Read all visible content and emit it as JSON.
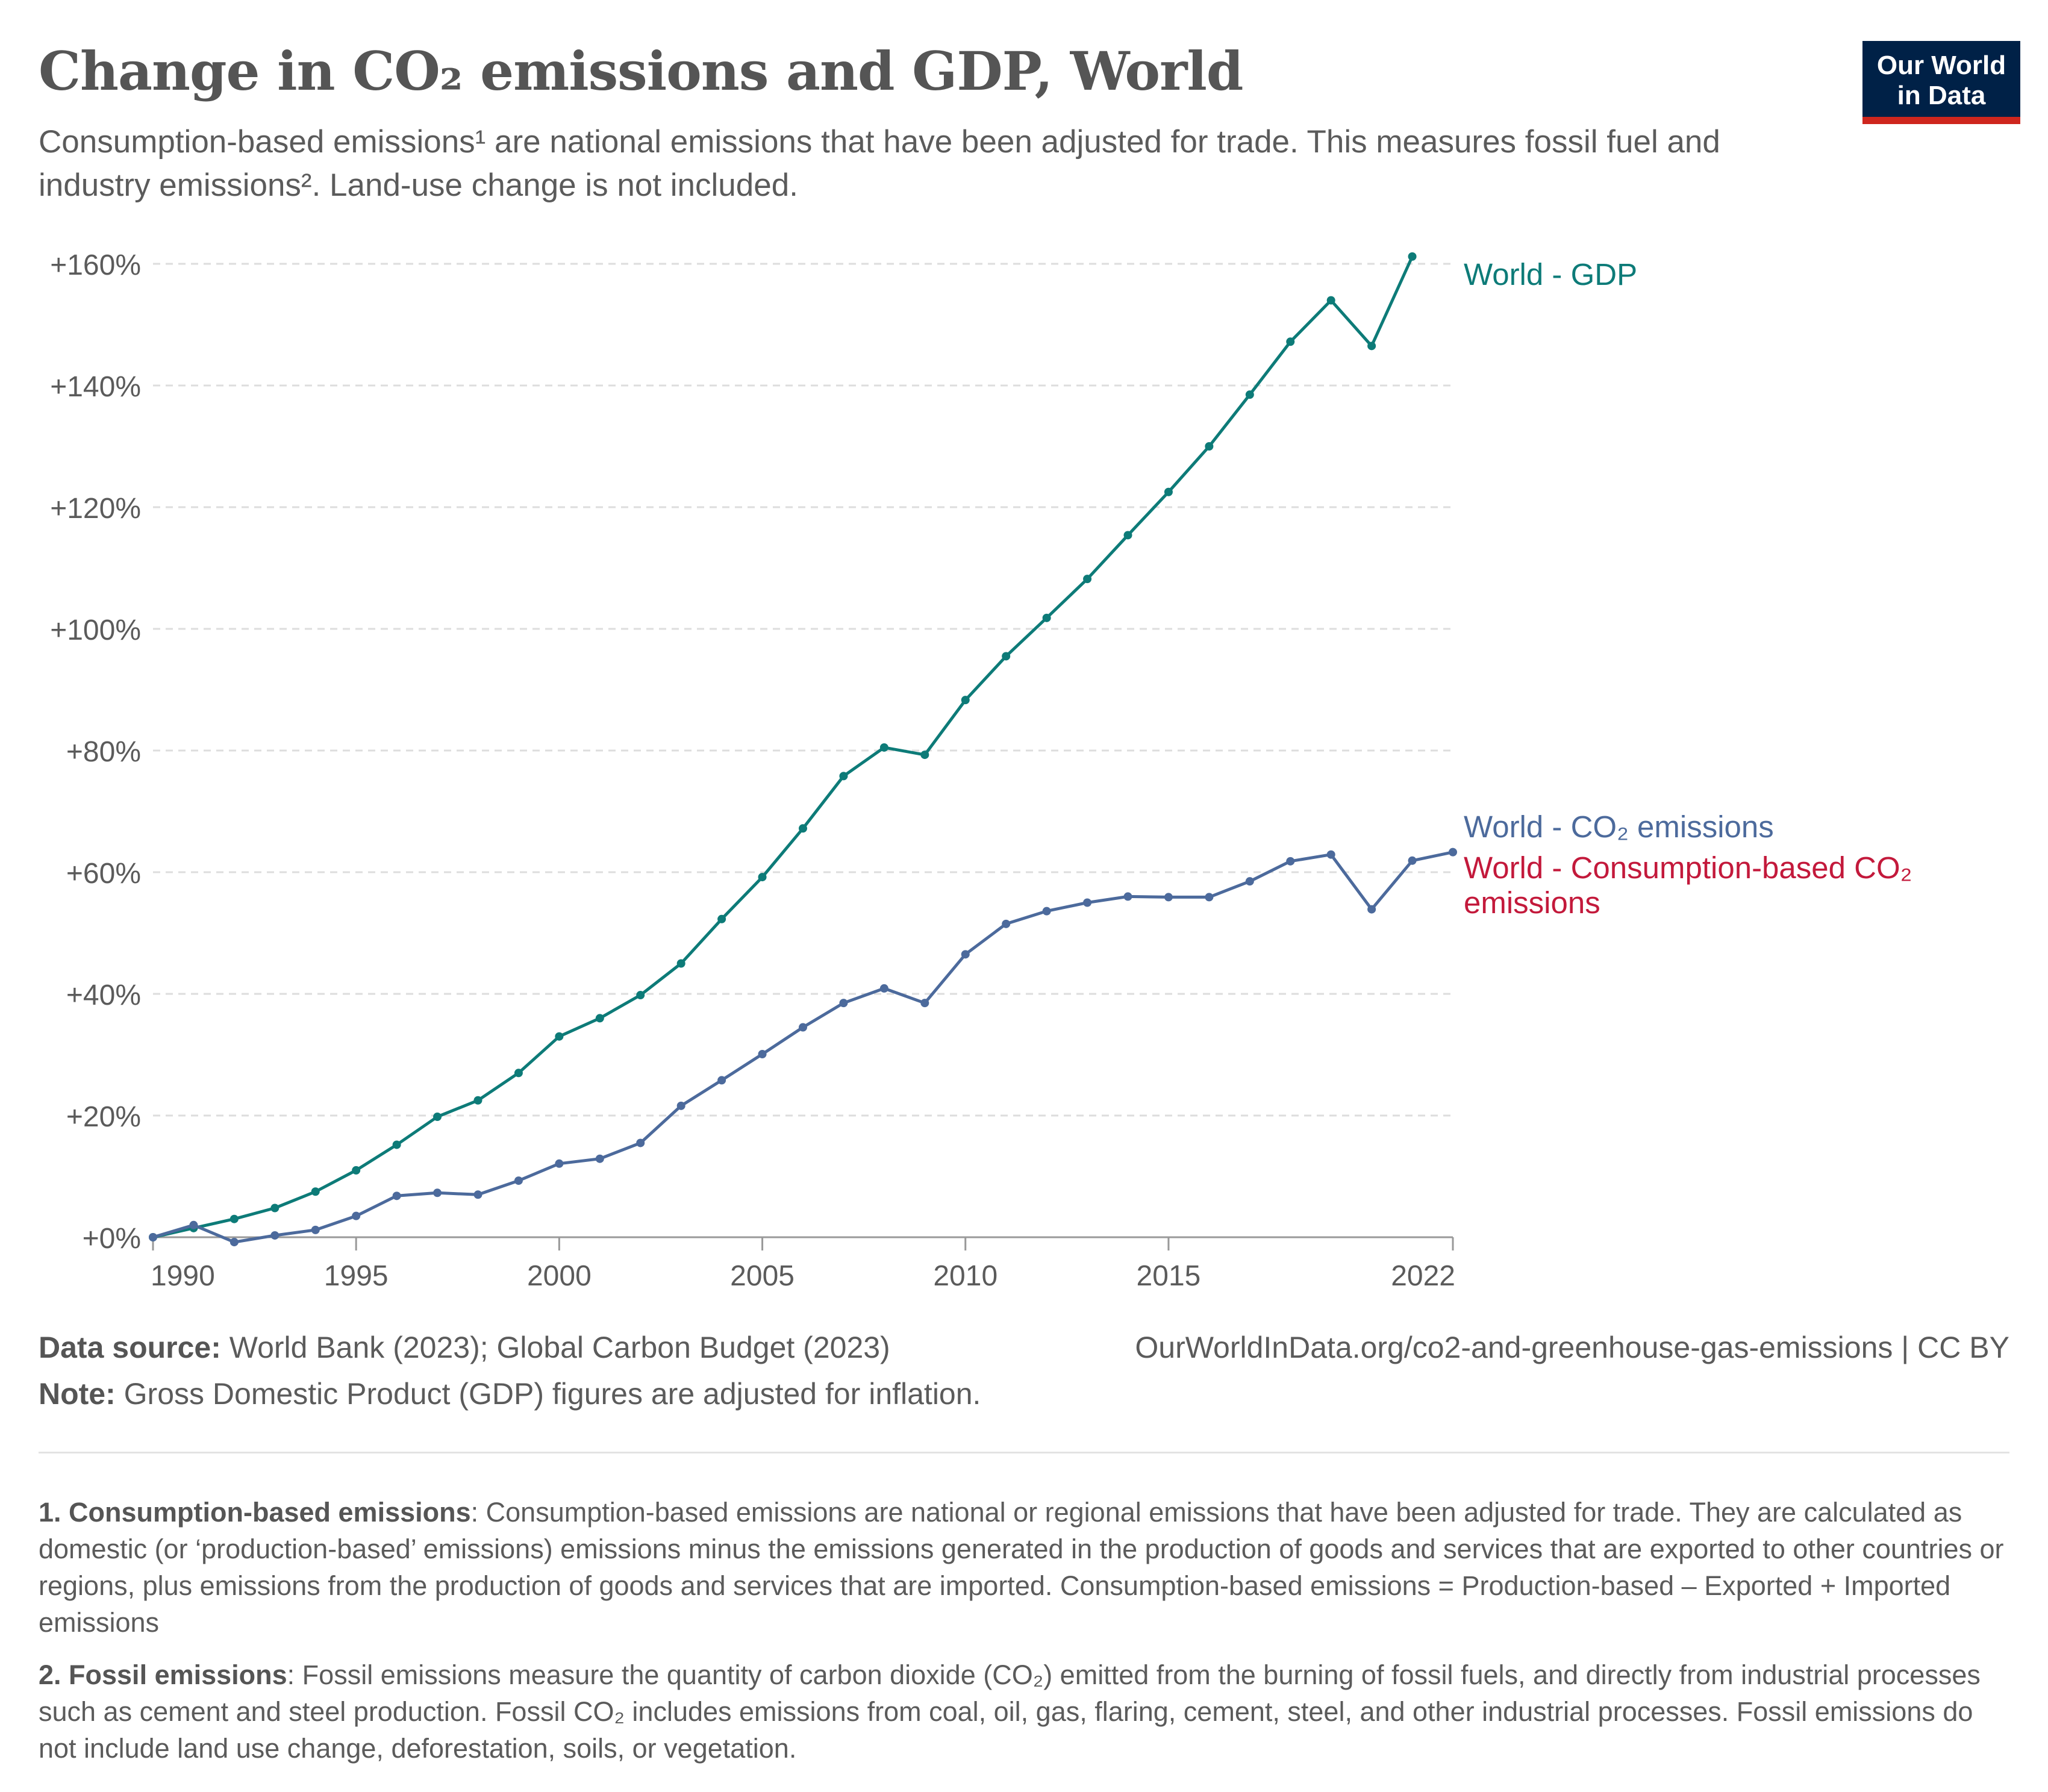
{
  "header": {
    "title": "Change in CO₂ emissions and GDP, World",
    "subtitle": "Consumption-based emissions¹ are national emissions that have been adjusted for trade. This measures fossil fuel and industry emissions². Land-use change is not included.",
    "logo_line1": "Our World",
    "logo_line2": "in Data"
  },
  "colors": {
    "gdp": "#0d7b78",
    "co2": "#4c6a9c",
    "consumption": "#c3193b",
    "grid": "#dddddd",
    "axis_text": "#5b5b5b",
    "logo_bg": "#002147",
    "logo_accent": "#ce261e"
  },
  "chart_data": {
    "type": "line",
    "title": "Change in CO₂ emissions and GDP, World",
    "x_ticks": [
      "1990",
      "1995",
      "2000",
      "2005",
      "2010",
      "2015",
      "2022"
    ],
    "x_tick_values": [
      1990,
      1995,
      2000,
      2005,
      2010,
      2015,
      2022
    ],
    "y_ticks": [
      "+0%",
      "+20%",
      "+40%",
      "+60%",
      "+80%",
      "+100%",
      "+120%",
      "+140%",
      "+160%"
    ],
    "y_tick_values": [
      0,
      20,
      40,
      60,
      80,
      100,
      120,
      140,
      160
    ],
    "xlim": [
      1990,
      2022
    ],
    "ylim": [
      0,
      160
    ],
    "grid": true,
    "legend": "right, labels at line ends",
    "series": [
      {
        "name": "World - GDP",
        "x": [
          1990,
          1991,
          1992,
          1993,
          1994,
          1995,
          1996,
          1997,
          1998,
          1999,
          2000,
          2001,
          2002,
          2003,
          2004,
          2005,
          2006,
          2007,
          2008,
          2009,
          2010,
          2011,
          2012,
          2013,
          2014,
          2015,
          2016,
          2017,
          2018,
          2019,
          2020,
          2021
        ],
        "values": [
          0,
          1.5,
          3,
          4.8,
          7.5,
          11,
          15.2,
          19.8,
          22.5,
          27,
          33,
          36,
          39.8,
          45,
          52.3,
          59.2,
          67.2,
          75.8,
          80.5,
          79.3,
          88.3,
          95.5,
          101.8,
          108.2,
          115.4,
          122.5,
          130,
          138.5,
          147.2,
          154,
          146.5,
          161.2
        ]
      },
      {
        "name": "World - CO₂ emissions",
        "x": [
          1990,
          1991,
          1992,
          1993,
          1994,
          1995,
          1996,
          1997,
          1998,
          1999,
          2000,
          2001,
          2002,
          2003,
          2004,
          2005,
          2006,
          2007,
          2008,
          2009,
          2010,
          2011,
          2012,
          2013,
          2014,
          2015,
          2016,
          2017,
          2018,
          2019,
          2020,
          2021,
          2022
        ],
        "values": [
          0,
          2,
          -0.8,
          0.3,
          1.2,
          3.5,
          6.8,
          7.3,
          7,
          9.3,
          12.1,
          12.9,
          15.5,
          21.6,
          25.8,
          30.1,
          34.5,
          38.5,
          40.9,
          38.5,
          46.5,
          51.5,
          53.6,
          55,
          56,
          55.9,
          55.9,
          58.5,
          61.8,
          62.9,
          53.9,
          61.9,
          63.3
        ]
      },
      {
        "name": "World - Consumption-based CO₂ emissions",
        "x": [],
        "values": []
      }
    ]
  },
  "footer": {
    "source_label": "Data source:",
    "source_text": " World Bank (2023); Global Carbon Budget (2023)",
    "url": "OurWorldInData.org/co2-and-greenhouse-gas-emissions | CC BY",
    "note_label": "Note:",
    "note_text": " Gross Domestic Product (GDP) figures are adjusted for inflation.",
    "fn1_label": "1. Consumption-based emissions",
    "fn1_text": ": Consumption-based emissions are national or regional emissions that have been adjusted for trade. They are calculated as domestic (or ‘production-based’ emissions) emissions minus the emissions generated in the production of goods and services that are exported to other countries or regions, plus emissions from the production of goods and services that are imported. Consumption-based emissions = Production-based – Exported + Imported emissions",
    "fn2_label": "2. Fossil emissions",
    "fn2_text": ": Fossil emissions measure the quantity of carbon dioxide (CO₂) emitted from the burning of fossil fuels, and directly from industrial processes such as cement and steel production. Fossil CO₂ includes emissions from coal, oil, gas, flaring, cement, steel, and other industrial processes. Fossil emissions do not include land use change, deforestation, soils, or vegetation."
  }
}
